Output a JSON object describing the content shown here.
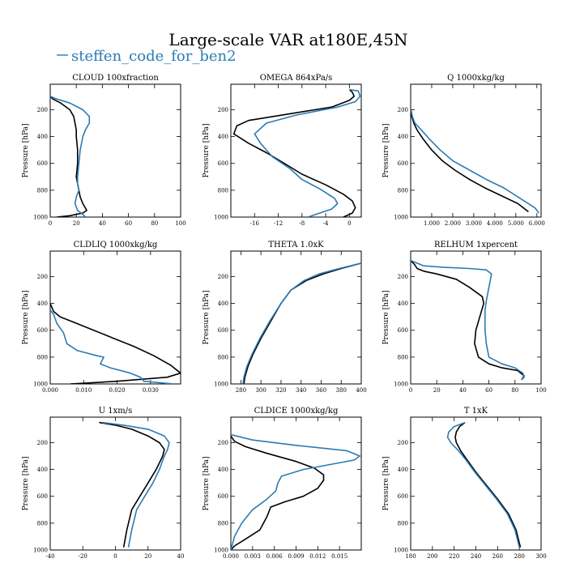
{
  "figure": {
    "title": "Large-scale VAR at180E,45N",
    "legend": {
      "name": "steffen_code_for_ben2",
      "color": "#2b7bb5",
      "marker": "—"
    },
    "ylabel": "Pressure [hPa]",
    "colors": {
      "black": "#000000",
      "blue": "#2b7bb5"
    }
  },
  "chart_data": [
    {
      "type": "line",
      "title": "CLOUD  100xfraction",
      "ylabel": "Pressure [hPa]",
      "xlim": [
        0,
        100
      ],
      "ylim": [
        1000,
        10
      ],
      "xticks": [
        0,
        20,
        40,
        60,
        80,
        100
      ],
      "xtick_labels": [
        "0",
        "20",
        "40",
        "60",
        "80",
        "100"
      ],
      "yticks": [
        200,
        400,
        600,
        800,
        1000
      ],
      "ytick_labels": [
        "200",
        "400",
        "600",
        "800",
        "1000"
      ],
      "series": [
        {
          "color": "#000000",
          "x": [
            0,
            2,
            8,
            15,
            18,
            19,
            20,
            20,
            21,
            21,
            20,
            21,
            22,
            23,
            25,
            28,
            25,
            15,
            5
          ],
          "y": [
            100,
            120,
            150,
            200,
            250,
            300,
            350,
            400,
            500,
            600,
            700,
            750,
            800,
            850,
            900,
            950,
            970,
            990,
            1000
          ]
        },
        {
          "name": "steffen_code_for_ben2",
          "color": "#2b7bb5",
          "x": [
            0,
            5,
            15,
            25,
            30,
            30,
            27,
            25,
            23,
            22,
            21,
            21,
            22,
            20,
            19,
            21,
            25,
            27
          ],
          "y": [
            100,
            120,
            150,
            200,
            250,
            300,
            350,
            400,
            500,
            600,
            700,
            750,
            800,
            850,
            900,
            950,
            980,
            1000
          ]
        }
      ]
    },
    {
      "type": "line",
      "title": "OMEGA  864xPa/s",
      "ylabel": "Pressure [hPa]",
      "xlim": [
        -20,
        2
      ],
      "ylim": [
        1000,
        10
      ],
      "xticks": [
        -16,
        -12,
        -8,
        -4,
        0
      ],
      "xtick_labels": [
        "-16",
        "-12",
        "-8",
        "-4",
        "0"
      ],
      "yticks": [
        200,
        400,
        600,
        800,
        1000
      ],
      "ytick_labels": [
        "200",
        "400",
        "600",
        "800",
        "1000"
      ],
      "series": [
        {
          "color": "#000000",
          "x": [
            0,
            0.5,
            0.8,
            0,
            -3,
            -10,
            -17,
            -19,
            -19.5,
            -17,
            -14,
            -11,
            -8,
            -4,
            -1,
            0.5,
            1,
            0.5,
            -1
          ],
          "y": [
            50,
            70,
            100,
            130,
            180,
            230,
            280,
            320,
            380,
            450,
            520,
            600,
            680,
            760,
            830,
            880,
            930,
            970,
            1000
          ]
        },
        {
          "color": "#2b7bb5",
          "x": [
            0,
            1.5,
            1.8,
            1,
            -2,
            -9,
            -14,
            -16,
            -15,
            -13,
            -10,
            -8,
            -5,
            -2.5,
            -2,
            -3,
            -5,
            -7
          ],
          "y": [
            50,
            60,
            100,
            140,
            180,
            240,
            300,
            380,
            450,
            550,
            640,
            720,
            790,
            860,
            900,
            940,
            970,
            1000
          ]
        }
      ]
    },
    {
      "type": "line",
      "title": "Q  1000xkg/kg",
      "ylabel": "Pressure [hPa]",
      "xlim": [
        0,
        6.2
      ],
      "ylim": [
        1000,
        10
      ],
      "xticks": [
        1,
        2,
        3,
        4,
        5,
        6
      ],
      "xtick_labels": [
        "1.000",
        "2.000",
        "3.000",
        "4.000",
        "5.000",
        "6.000"
      ],
      "yticks": [
        200,
        400,
        600,
        800,
        1000
      ],
      "ytick_labels": [
        "200",
        "400",
        "600",
        "800",
        "1000"
      ],
      "series": [
        {
          "color": "#000000",
          "x": [
            0.02,
            0.05,
            0.15,
            0.3,
            0.6,
            1.0,
            1.5,
            2.1,
            2.8,
            3.5,
            4.3,
            5.1,
            5.6
          ],
          "y": [
            200,
            250,
            300,
            350,
            420,
            500,
            580,
            650,
            720,
            780,
            840,
            900,
            960
          ]
        },
        {
          "color": "#2b7bb5",
          "x": [
            0.02,
            0.08,
            0.2,
            0.5,
            0.9,
            1.4,
            2.0,
            2.8,
            3.6,
            4.4,
            5.2,
            5.9,
            6.1
          ],
          "y": [
            200,
            250,
            300,
            350,
            420,
            500,
            580,
            650,
            720,
            780,
            860,
            930,
            970
          ]
        }
      ]
    },
    {
      "type": "line",
      "title": "CLDLIQ  1000xkg/kg",
      "ylabel": "Pressure [hPa]",
      "xlim": [
        0,
        0.039
      ],
      "ylim": [
        1000,
        10
      ],
      "xticks": [
        0,
        0.01,
        0.02,
        0.03
      ],
      "xtick_labels": [
        "0.000",
        "0.010",
        "0.020",
        "0.030"
      ],
      "yticks": [
        200,
        400,
        600,
        800,
        1000
      ],
      "ytick_labels": [
        "200",
        "400",
        "600",
        "800",
        "1000"
      ],
      "series": [
        {
          "color": "#000000",
          "x": [
            0,
            0.0005,
            0.001,
            0.003,
            0.007,
            0.013,
            0.019,
            0.025,
            0.031,
            0.036,
            0.039,
            0.035,
            0.02,
            0.006
          ],
          "y": [
            400,
            430,
            460,
            500,
            540,
            600,
            660,
            720,
            790,
            860,
            920,
            950,
            980,
            1000
          ]
        },
        {
          "color": "#2b7bb5",
          "x": [
            0,
            0.001,
            0.002,
            0.004,
            0.005,
            0.008,
            0.014,
            0.016,
            0.015,
            0.018,
            0.024,
            0.027,
            0.028,
            0.037
          ],
          "y": [
            450,
            480,
            550,
            620,
            700,
            750,
            790,
            800,
            850,
            880,
            920,
            950,
            980,
            1000
          ]
        }
      ]
    },
    {
      "type": "line",
      "title": "THETA  1.0xK",
      "ylabel": "Pressure [hPa]",
      "xlim": [
        270,
        400
      ],
      "ylim": [
        1000,
        10
      ],
      "xticks": [
        280,
        300,
        320,
        340,
        360,
        380,
        400
      ],
      "xtick_labels": [
        "280",
        "300",
        "320",
        "340",
        "360",
        "380",
        "400"
      ],
      "yticks": [
        200,
        400,
        600,
        800,
        1000
      ],
      "ytick_labels": [
        "200",
        "400",
        "600",
        "800",
        "1000"
      ],
      "series": [
        {
          "color": "#000000",
          "x": [
            283,
            284,
            287,
            292,
            300,
            310,
            320,
            330,
            345,
            362,
            380,
            400
          ],
          "y": [
            1000,
            950,
            870,
            780,
            660,
            530,
            400,
            300,
            230,
            180,
            140,
            100
          ]
        },
        {
          "color": "#2b7bb5",
          "x": [
            282,
            283,
            286,
            291,
            299,
            309,
            320,
            330,
            343,
            358,
            378,
            400
          ],
          "y": [
            1000,
            950,
            870,
            780,
            660,
            530,
            400,
            300,
            230,
            180,
            140,
            100
          ]
        }
      ]
    },
    {
      "type": "line",
      "title": "RELHUM  1xpercent",
      "ylabel": "Pressure [hPa]",
      "xlim": [
        0,
        100
      ],
      "ylim": [
        1000,
        10
      ],
      "xticks": [
        0,
        20,
        40,
        60,
        80,
        100
      ],
      "xtick_labels": [
        "0",
        "20",
        "40",
        "60",
        "80",
        "100"
      ],
      "yticks": [
        200,
        400,
        600,
        800,
        1000
      ],
      "ytick_labels": [
        "200",
        "400",
        "600",
        "800",
        "1000"
      ],
      "series": [
        {
          "color": "#000000",
          "x": [
            0,
            3,
            5,
            10,
            20,
            35,
            45,
            55,
            56,
            53,
            50,
            49,
            52,
            60,
            70,
            82,
            87,
            85
          ],
          "y": [
            80,
            110,
            140,
            160,
            180,
            220,
            280,
            350,
            400,
            500,
            600,
            700,
            800,
            850,
            880,
            900,
            940,
            970
          ]
        },
        {
          "color": "#2b7bb5",
          "x": [
            0,
            5,
            10,
            25,
            45,
            58,
            62,
            60,
            58,
            57,
            57,
            58,
            60,
            70,
            80,
            86,
            87,
            85
          ],
          "y": [
            80,
            100,
            120,
            130,
            140,
            150,
            180,
            280,
            380,
            450,
            600,
            700,
            800,
            850,
            880,
            920,
            950,
            970
          ]
        }
      ]
    },
    {
      "type": "line",
      "title": "U  1xm/s",
      "ylabel": "Pressure [hPa]",
      "xlim": [
        -40,
        40
      ],
      "ylim": [
        1000,
        10
      ],
      "xticks": [
        -40,
        -20,
        0,
        20,
        40
      ],
      "xtick_labels": [
        "-40",
        "-20",
        "0",
        "20",
        "40"
      ],
      "yticks": [
        200,
        400,
        600,
        800,
        1000
      ],
      "ytick_labels": [
        "200",
        "400",
        "600",
        "800",
        "1000"
      ],
      "series": [
        {
          "color": "#000000",
          "x": [
            -10,
            0,
            10,
            20,
            27,
            30,
            29,
            25,
            20,
            15,
            10,
            7,
            5
          ],
          "y": [
            50,
            70,
            100,
            150,
            200,
            250,
            300,
            400,
            500,
            600,
            700,
            850,
            980
          ]
        },
        {
          "color": "#2b7bb5",
          "x": [
            -8,
            5,
            20,
            30,
            33,
            32,
            30,
            27,
            23,
            18,
            13,
            10,
            8
          ],
          "y": [
            50,
            70,
            100,
            150,
            200,
            250,
            300,
            400,
            500,
            600,
            700,
            850,
            980
          ]
        }
      ]
    },
    {
      "type": "line",
      "title": "CLDICE  1000xkg/kg",
      "ylabel": "Pressure [hPa]",
      "xlim": [
        0,
        0.018
      ],
      "ylim": [
        1000,
        10
      ],
      "xticks": [
        0,
        0.003,
        0.006,
        0.009,
        0.012,
        0.015
      ],
      "xtick_labels": [
        "0.000",
        "0.003",
        "0.006",
        "0.009",
        "0.012",
        "0.015"
      ],
      "yticks": [
        200,
        400,
        600,
        800,
        1000
      ],
      "ytick_labels": [
        "200",
        "400",
        "600",
        "800",
        "1000"
      ],
      "series": [
        {
          "color": "#000000",
          "x": [
            0,
            0.0005,
            0.002,
            0.005,
            0.009,
            0.0115,
            0.0128,
            0.0128,
            0.012,
            0.01,
            0.0075,
            0.0055,
            0.005,
            0.004,
            0.002,
            0.0005,
            0
          ],
          "y": [
            150,
            190,
            230,
            280,
            340,
            390,
            440,
            480,
            540,
            600,
            640,
            680,
            750,
            850,
            920,
            970,
            1000
          ]
        },
        {
          "color": "#2b7bb5",
          "x": [
            0,
            0.003,
            0.009,
            0.016,
            0.0178,
            0.017,
            0.014,
            0.01,
            0.007,
            0.0065,
            0.0062,
            0.005,
            0.003,
            0.0015,
            0.0005,
            0
          ],
          "y": [
            140,
            180,
            220,
            260,
            300,
            330,
            360,
            400,
            450,
            500,
            560,
            620,
            700,
            800,
            900,
            1000
          ]
        }
      ]
    },
    {
      "type": "line",
      "title": "T  1xK",
      "ylabel": "Pressure [hPa]",
      "xlim": [
        180,
        300
      ],
      "ylim": [
        1000,
        10
      ],
      "xticks": [
        180,
        200,
        220,
        240,
        260,
        280,
        300
      ],
      "xtick_labels": [
        "180",
        "200",
        "220",
        "240",
        "260",
        "280",
        "300"
      ],
      "yticks": [
        200,
        400,
        600,
        800,
        1000
      ],
      "ytick_labels": [
        "200",
        "400",
        "600",
        "800",
        "1000"
      ],
      "series": [
        {
          "color": "#000000",
          "x": [
            230,
            225,
            222,
            221,
            222,
            226,
            232,
            240,
            250,
            260,
            270,
            277,
            281
          ],
          "y": [
            50,
            80,
            120,
            160,
            200,
            260,
            330,
            420,
            520,
            620,
            730,
            850,
            980
          ]
        },
        {
          "color": "#2b7bb5",
          "x": [
            230,
            220,
            215,
            214,
            217,
            224,
            231,
            239,
            249,
            259,
            269,
            276,
            280
          ],
          "y": [
            50,
            80,
            120,
            160,
            200,
            260,
            330,
            420,
            520,
            620,
            730,
            850,
            980
          ]
        }
      ]
    }
  ]
}
